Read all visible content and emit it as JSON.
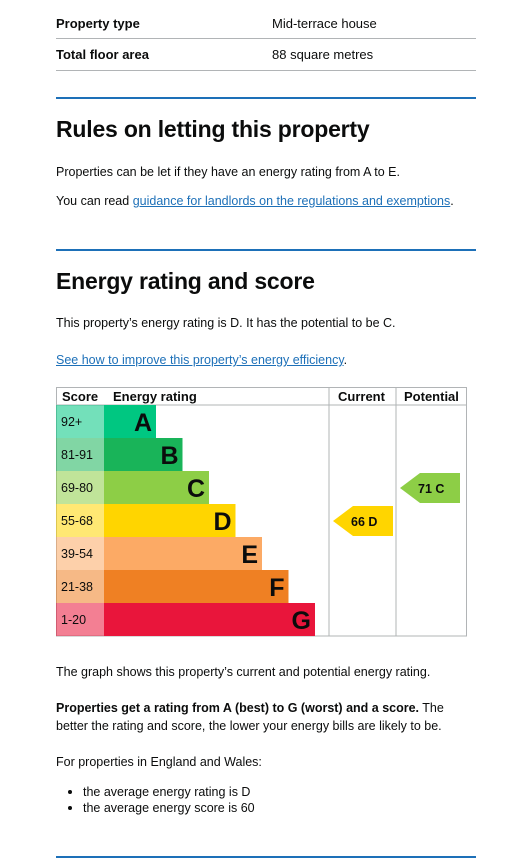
{
  "summary": [
    {
      "key": "Property type",
      "value": "Mid-terrace house"
    },
    {
      "key": "Total floor area",
      "value": "88 square metres"
    }
  ],
  "rules": {
    "heading": "Rules on letting this property",
    "text": "Properties can be let if they have an energy rating from A to E.",
    "read_prefix": "You can read ",
    "read_link": "guidance for landlords on the regulations and exemptions",
    "read_suffix": "."
  },
  "energy": {
    "heading": "Energy rating and score",
    "text": "This property’s energy rating is D. It has the potential to be C.",
    "improve_link": "See how to improve this property’s energy efficiency",
    "improve_suffix": "."
  },
  "chart_data": {
    "type": "table",
    "headers": {
      "score": "Score",
      "rating": "Energy rating",
      "current": "Current",
      "potential": "Potential"
    },
    "bands": [
      {
        "letter": "A",
        "range": "92+",
        "color": "#00c781"
      },
      {
        "letter": "B",
        "range": "81-91",
        "color": "#19b459"
      },
      {
        "letter": "C",
        "range": "69-80",
        "color": "#8dce46"
      },
      {
        "letter": "D",
        "range": "55-68",
        "color": "#ffd500"
      },
      {
        "letter": "E",
        "range": "39-54",
        "color": "#fcaa65"
      },
      {
        "letter": "F",
        "range": "21-38",
        "color": "#ef8023"
      },
      {
        "letter": "G",
        "range": "1-20",
        "color": "#e9153b"
      }
    ],
    "current": {
      "score": 66,
      "letter": "D",
      "label": "66  D"
    },
    "potential": {
      "score": 71,
      "letter": "C",
      "label": "71  C"
    }
  },
  "footer": {
    "graph_text": "The graph shows this property’s current and potential energy rating.",
    "bold_part": "Properties get a rating from A (best) to G (worst) and a score.",
    "rest_part": " The better the rating and score, the lower your energy bills are likely to be.",
    "england_intro": "For properties in England and Wales:",
    "bullets": [
      "the average energy rating is D",
      "the average energy score is 60"
    ]
  }
}
